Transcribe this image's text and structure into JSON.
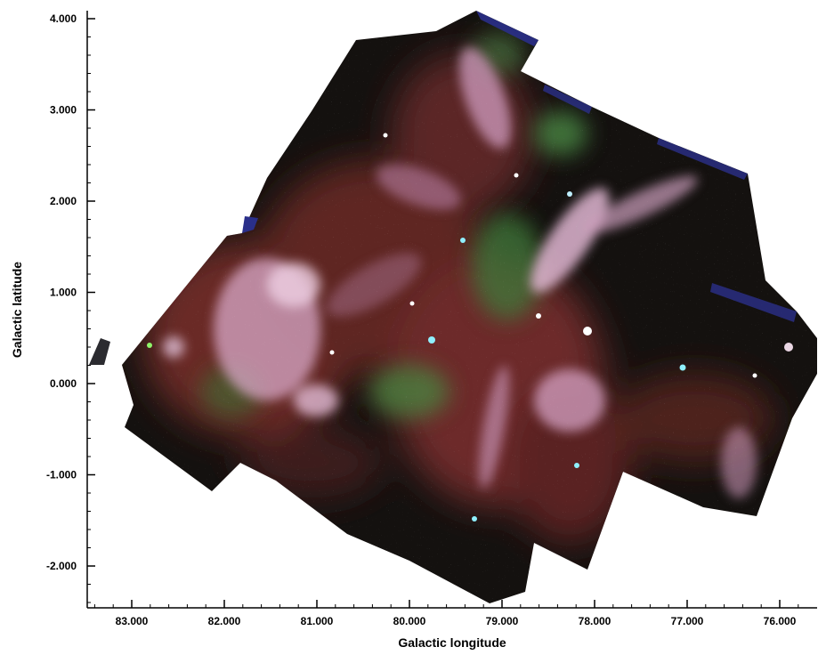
{
  "figure": {
    "description_kind": "astronomical-mosaic",
    "xlabel": "Galactic longitude",
    "ylabel": "Galactic latitude",
    "xlim": [
      83.5,
      75.5
    ],
    "ylim": [
      -2.5,
      4.1
    ],
    "x_ticks": [
      {
        "value": 83.0,
        "label": "83.000"
      },
      {
        "value": 82.0,
        "label": "82.000"
      },
      {
        "value": 81.0,
        "label": "81.000"
      },
      {
        "value": 80.0,
        "label": "80.000"
      },
      {
        "value": 79.0,
        "label": "79.000"
      },
      {
        "value": 78.0,
        "label": "78.000"
      },
      {
        "value": 77.0,
        "label": "77.000"
      },
      {
        "value": 76.0,
        "label": "76.000"
      }
    ],
    "y_ticks": [
      {
        "value": 4.0,
        "label": "4.000"
      },
      {
        "value": 3.0,
        "label": "3.000"
      },
      {
        "value": 2.0,
        "label": "2.000"
      },
      {
        "value": 1.0,
        "label": "1.000"
      },
      {
        "value": 0.0,
        "label": "0.000"
      },
      {
        "value": -1.0,
        "label": "-1.000"
      },
      {
        "value": -2.0,
        "label": "-2.000"
      }
    ],
    "minor_ticks_per_interval": 5,
    "colors": {
      "background": "#ffffff",
      "axis": "#000000",
      "sky_dark": "#14110f",
      "nebula_red": "#7a2e2c",
      "nebula_pink": "#d8a8c8",
      "nebula_green": "#3f7a3a",
      "edge_blue": "#2a2f8a",
      "star_cyan": "#8ff0ff"
    }
  }
}
